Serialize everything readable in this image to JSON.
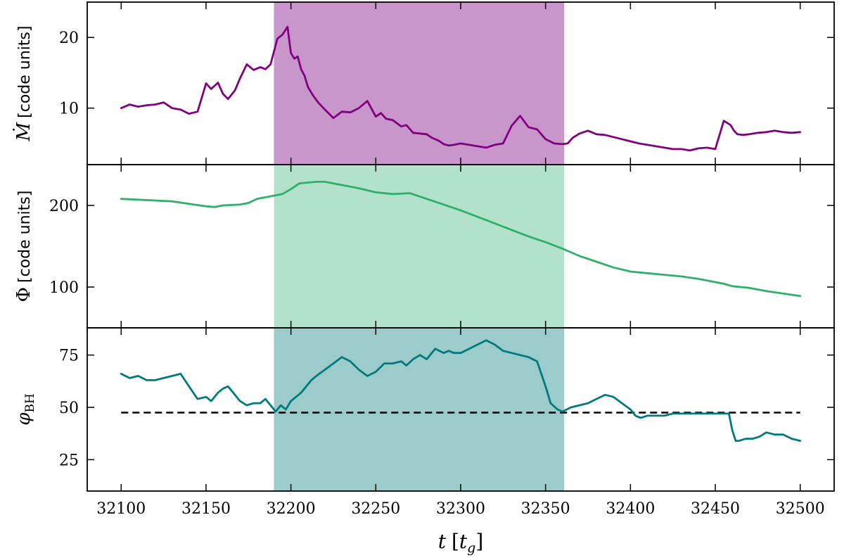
{
  "chart_data": {
    "type": "line",
    "shared_x": {
      "label_var": "t",
      "label_unit": "t",
      "label_unit_sub": "g",
      "ticks": [
        32100,
        32150,
        32200,
        32250,
        32300,
        32350,
        32400,
        32450,
        32500
      ],
      "xlim": [
        32080,
        32520
      ]
    },
    "shaded_interval": [
      32190,
      32361
    ],
    "panels": [
      {
        "id": "mdot",
        "ylabel_symbol": "Ṁ",
        "ylabel_unit": "[code units]",
        "ylim": [
          2,
          25
        ],
        "yticks": [
          10,
          20
        ],
        "color": "#800080",
        "shade_color": "#c896cb",
        "x": [
          32100,
          32105,
          32110,
          32115,
          32120,
          32125,
          32130,
          32135,
          32140,
          32145,
          32150,
          32153,
          32157,
          32160,
          32163,
          32167,
          32170,
          32174,
          32178,
          32182,
          32185,
          32188,
          32192,
          32195,
          32198,
          32200,
          32202,
          32204,
          32206,
          32208,
          32210,
          32213,
          32216,
          32220,
          32225,
          32230,
          32235,
          32240,
          32245,
          32250,
          32253,
          32256,
          32260,
          32265,
          32268,
          32272,
          32276,
          32280,
          32283,
          32287,
          32290,
          32293,
          32296,
          32300,
          32305,
          32310,
          32315,
          32320,
          32325,
          32330,
          32335,
          32340,
          32345,
          32350,
          32355,
          32360,
          32363,
          32366,
          32370,
          32375,
          32380,
          32385,
          32390,
          32395,
          32400,
          32405,
          32410,
          32415,
          32420,
          32425,
          32430,
          32435,
          32440,
          32445,
          32450,
          32455,
          32459,
          32461,
          32463,
          32466,
          32470,
          32475,
          32480,
          32485,
          32490,
          32495,
          32500
        ],
        "y": [
          10.0,
          10.5,
          10.2,
          10.4,
          10.5,
          10.8,
          10.0,
          9.8,
          9.2,
          9.5,
          13.5,
          12.7,
          13.6,
          12.0,
          11.3,
          12.5,
          14.2,
          16.2,
          15.4,
          15.8,
          15.5,
          16.2,
          19.8,
          20.4,
          21.5,
          17.8,
          17.0,
          17.3,
          15.5,
          14.6,
          13.0,
          11.8,
          10.8,
          9.8,
          8.6,
          9.5,
          9.4,
          10.0,
          11.0,
          8.8,
          9.3,
          8.5,
          8.3,
          7.4,
          7.6,
          6.5,
          6.4,
          6.3,
          5.8,
          5.4,
          4.9,
          4.7,
          4.8,
          5.0,
          4.8,
          4.6,
          4.4,
          4.8,
          5.0,
          7.5,
          8.9,
          7.3,
          7.0,
          5.6,
          5.0,
          4.9,
          5.0,
          5.8,
          6.4,
          6.8,
          6.3,
          6.2,
          5.9,
          5.6,
          5.3,
          5.0,
          4.8,
          4.6,
          4.4,
          4.2,
          4.2,
          4.0,
          4.3,
          4.4,
          4.2,
          8.2,
          7.6,
          6.8,
          6.3,
          6.2,
          6.3,
          6.5,
          6.6,
          6.8,
          6.6,
          6.5,
          6.6
        ],
        "y_fine": true
      },
      {
        "id": "phi",
        "ylabel_symbol": "Φ",
        "ylabel_unit": "[code units]",
        "ylim": [
          50,
          250
        ],
        "yticks": [
          100,
          200
        ],
        "color": "#2fb06a",
        "shade_color": "#b2e2cb",
        "x": [
          32100,
          32120,
          32130,
          32140,
          32150,
          32155,
          32160,
          32170,
          32175,
          32180,
          32185,
          32190,
          32195,
          32200,
          32205,
          32210,
          32215,
          32220,
          32225,
          32230,
          32240,
          32250,
          32260,
          32270,
          32280,
          32290,
          32300,
          32310,
          32320,
          32330,
          32340,
          32350,
          32355,
          32360,
          32370,
          32380,
          32390,
          32400,
          32410,
          32420,
          32430,
          32440,
          32450,
          32455,
          32460,
          32465,
          32470,
          32480,
          32490,
          32500
        ],
        "y": [
          208,
          206,
          205,
          202,
          199,
          198,
          200,
          201,
          203,
          208,
          210,
          212,
          214,
          220,
          227,
          228,
          229,
          229,
          227,
          225,
          221,
          216,
          214,
          215,
          208,
          201,
          194,
          186,
          178,
          170,
          162,
          155,
          151,
          147,
          138,
          131,
          124,
          119,
          117,
          115,
          113,
          110,
          106,
          104,
          101,
          100,
          99,
          95,
          92,
          89
        ]
      },
      {
        "id": "phibh",
        "ylabel_symbol": "φ",
        "ylabel_sub": "BH",
        "ylim": [
          10,
          88
        ],
        "yticks": [
          25,
          50,
          75
        ],
        "color": "#007a7a",
        "shade_color": "#9ccbcc",
        "reference_y": 47.5,
        "x": [
          32100,
          32105,
          32110,
          32115,
          32120,
          32125,
          32130,
          32135,
          32140,
          32145,
          32150,
          32153,
          32157,
          32160,
          32163,
          32166,
          32170,
          32174,
          32178,
          32182,
          32185,
          32188,
          32191,
          32194,
          32197,
          32200,
          32203,
          32206,
          32209,
          32212,
          32215,
          32220,
          32225,
          32230,
          32235,
          32240,
          32245,
          32250,
          32255,
          32260,
          32265,
          32268,
          32272,
          32276,
          32280,
          32285,
          32290,
          32293,
          32296,
          32300,
          32305,
          32310,
          32315,
          32320,
          32325,
          32330,
          32335,
          32340,
          32345,
          32350,
          32353,
          32357,
          32360,
          32365,
          32370,
          32375,
          32380,
          32385,
          32390,
          32395,
          32400,
          32403,
          32406,
          32410,
          32415,
          32420,
          32425,
          32430,
          32435,
          32440,
          32445,
          32450,
          32455,
          32458,
          32460,
          32462,
          32464,
          32468,
          32472,
          32476,
          32480,
          32485,
          32490,
          32495,
          32500
        ],
        "y": [
          66,
          64,
          65,
          63,
          63,
          64,
          65,
          66,
          60,
          54,
          55,
          53,
          57,
          59,
          60,
          57,
          53,
          51,
          52,
          52,
          54,
          51,
          48,
          51,
          49,
          53,
          55,
          57,
          60,
          63,
          65,
          68,
          71,
          74,
          72,
          68,
          65,
          67,
          71,
          71,
          72,
          70,
          73,
          75,
          73,
          78,
          76,
          77,
          76,
          76,
          78,
          80,
          82,
          80,
          77,
          76,
          75,
          74,
          72,
          60,
          52,
          49,
          48,
          50,
          51,
          52,
          54,
          56,
          55,
          52,
          49,
          46,
          45,
          46,
          46,
          46,
          47,
          47,
          47,
          47,
          47,
          47,
          47,
          47,
          39,
          34,
          34,
          35,
          35,
          36,
          38,
          37,
          37,
          35,
          34
        ]
      }
    ]
  }
}
